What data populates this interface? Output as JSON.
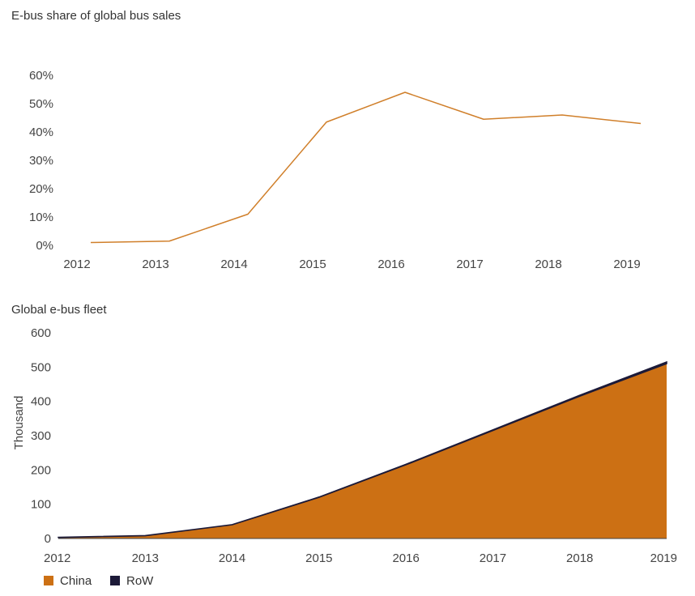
{
  "chart_data": [
    {
      "type": "line",
      "title": "E-bus share of global bus sales",
      "xlabel": "",
      "ylabel": "",
      "x": [
        2012,
        2013,
        2014,
        2015,
        2016,
        2017,
        2018,
        2019
      ],
      "series": [
        {
          "name": "",
          "values": [
            1,
            1.5,
            11,
            43.5,
            54,
            44.5,
            46,
            43
          ],
          "color": "#d07f2a"
        }
      ],
      "ylim": [
        0,
        60
      ],
      "y_ticks": [
        0,
        10,
        20,
        30,
        40,
        50,
        60
      ],
      "y_tick_labels": [
        "0%",
        "10%",
        "20%",
        "30%",
        "40%",
        "50%",
        "60%"
      ],
      "x_tick_labels": [
        "2012",
        "2013",
        "2014",
        "2015",
        "2016",
        "2017",
        "2018",
        "2019"
      ],
      "grid": false
    },
    {
      "type": "area",
      "title": "Global e-bus fleet",
      "xlabel": "",
      "ylabel": "Thousand",
      "x": [
        2012,
        2013,
        2014,
        2015,
        2016,
        2017,
        2018,
        2019
      ],
      "series": [
        {
          "name": "China",
          "values": [
            3,
            8,
            40,
            120,
            215,
            315,
            415,
            510
          ],
          "color": "#cc7014"
        },
        {
          "name": "RoW",
          "values": [
            0.5,
            0.5,
            0.5,
            1,
            1.5,
            2,
            3,
            5
          ],
          "color": "#1c1a38"
        }
      ],
      "stacked": true,
      "ylim": [
        0,
        600
      ],
      "y_ticks": [
        0,
        100,
        200,
        300,
        400,
        500,
        600
      ],
      "x_tick_labels": [
        "2012",
        "2013",
        "2014",
        "2015",
        "2016",
        "2017",
        "2018",
        "2019"
      ],
      "legend_position": "bottom-left",
      "grid": false
    }
  ]
}
